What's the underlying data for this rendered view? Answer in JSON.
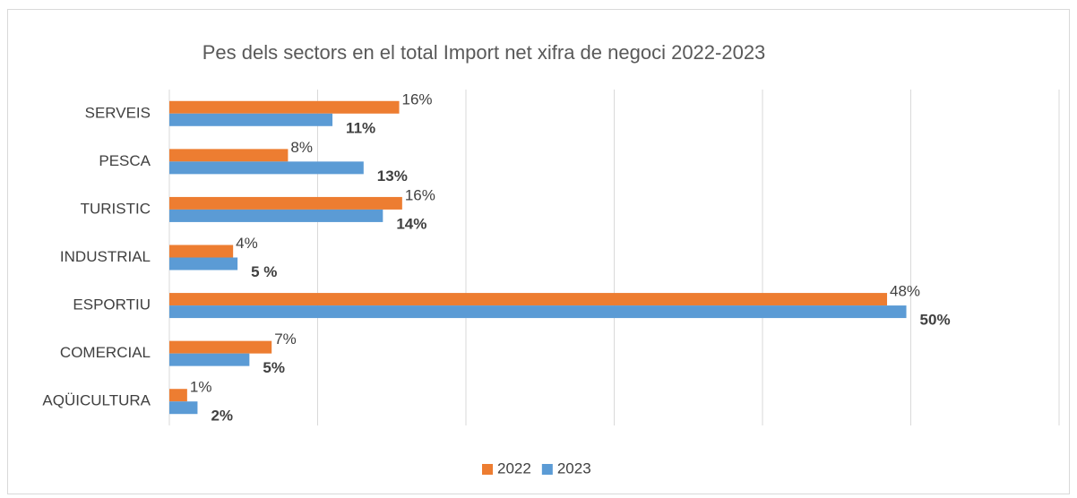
{
  "chart_data": {
    "type": "hbar",
    "title": "Pes dels sectors en el total Import net xifra de negoci 2022-2023",
    "categories": [
      "SERVEIS",
      "PESCA",
      "TURISTIC",
      "INDUSTRIAL",
      "ESPORTIU",
      "COMERCIAL",
      "AQÜICULTURA"
    ],
    "series": [
      {
        "name": "2022",
        "color": "#ED7D31",
        "values": [
          15.5,
          8.0,
          15.7,
          4.3,
          48.4,
          6.9,
          1.2
        ],
        "value_labels": [
          "16%",
          "8%",
          "16%",
          "4%",
          "48%",
          "7%",
          "1%"
        ]
      },
      {
        "name": "2023",
        "color": "#5B9BD5",
        "values": [
          11.0,
          13.1,
          14.4,
          4.6,
          49.7,
          5.4,
          1.9
        ],
        "value_labels": [
          "11%",
          "13%",
          "14%",
          "5 %",
          "50%",
          "5%",
          "2%"
        ]
      }
    ],
    "xlim": [
      0,
      60
    ],
    "xticks": [
      0,
      10,
      20,
      30,
      40,
      50,
      60
    ],
    "grid": true,
    "legend": "bottom"
  }
}
